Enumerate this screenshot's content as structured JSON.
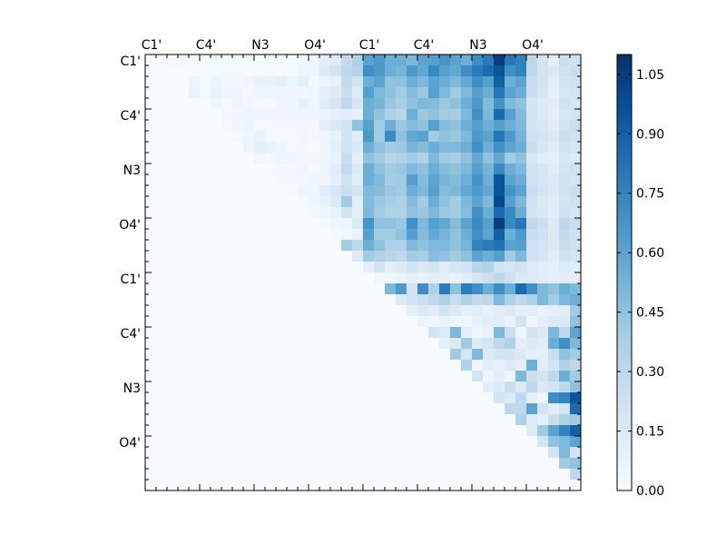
{
  "chart_data": {
    "type": "heatmap",
    "title": "",
    "xlabel": "",
    "ylabel": "",
    "grid": false,
    "colormap": "Blues",
    "colors": {
      "low": "#f7fbff",
      "high": "#08306b"
    },
    "n_rows": 40,
    "n_cols": 40,
    "x_tick_labels": [
      "C1'",
      "C4'",
      "N3",
      "O4'",
      "C1'",
      "C4'",
      "N3",
      "O4'"
    ],
    "x_tick_positions": [
      0,
      5,
      10,
      15,
      20,
      25,
      30,
      35
    ],
    "y_tick_labels": [
      "C1'",
      "C4'",
      "N3",
      "O4'",
      "C1'",
      "C4'",
      "N3",
      "O4'"
    ],
    "y_tick_positions": [
      0,
      5,
      10,
      15,
      20,
      25,
      30,
      35
    ],
    "colorbar": {
      "min": 0.0,
      "max": 1.1,
      "ticks": [
        0.0,
        0.15,
        0.3,
        0.45,
        0.6,
        0.75,
        0.9,
        1.05
      ],
      "tick_labels": [
        "0.00",
        "0.15",
        "0.30",
        "0.45",
        "0.60",
        "0.75",
        "0.90",
        "1.05"
      ]
    },
    "value_rows": [
      "0,0,0.03,0.03,0.01,0.01,0.02,0.02,0.01,0.01,0.01,0.01,0.01,0.01,0.03,0.04,0.12,0.14,0.28,0.35,0.60,0.65,0.55,0.55,0.50,0.60,0.62,0.68,0.60,0.55,0.70,0.78,1.05,0.80,0.75,0.30,0.20,0.10,0.25,0.22",
      "0,0,0,0,0.01,0.01,0.02,0.02,0.02,0.01,0.01,0.02,0.02,0.02,0.05,0.06,0.14,0.20,0.30,0.33,0.70,0.65,0.55,0.52,0.65,0.58,0.72,0.62,0.58,0.70,0.78,0.85,0.95,0.70,0.75,0.30,0.20,0.15,0.22,0.25",
      "0,0,0,0,0.05,0.01,0.06,0.03,0.03,0.05,0.08,0.08,0.10,0.06,0.10,0.02,0.06,0.08,0.28,0.20,0.55,0.60,0.45,0.45,0.55,0.50,0.60,0.55,0.50,0.58,0.70,0.62,0.90,0.55,0.60,0.25,0.20,0.12,0.20,0.22",
      "0,0,0,0,0.08,0.02,0.08,0.05,0.05,0.03,0.04,0.06,0.05,0.05,0.04,0.05,0.10,0.15,0.25,0.15,0.62,0.50,0.45,0.40,0.48,0.42,0.62,0.50,0.40,0.50,0.62,0.55,0.80,0.60,0.55,0.25,0.18,0.10,0.18,0.20",
      "0,0,0,0,0,0,0.04,0.02,0.06,0.04,0.02,0.03,0.05,0.04,0.08,0.05,0.12,0.18,0.30,0.18,0.55,0.52,0.42,0.38,0.45,0.50,0.48,0.42,0.45,0.55,0.65,0.48,0.68,0.50,0.45,0.20,0.15,0.12,0.22,0.18",
      "0,0,0,0,0,0,0,0.03,0.04,0.05,0.05,0.05,0.05,0.05,0.04,0.05,0.06,0.10,0.12,0.10,0.55,0.45,0.35,0.32,0.55,0.42,0.45,0.40,0.38,0.50,0.70,0.50,0.85,0.62,0.48,0.20,0.15,0.10,0.18,0.20",
      "0,0,0,0,0,0,0,0.02,0.04,0.06,0.02,0.03,0.03,0.03,0.03,0.03,0.10,0.15,0.20,0.45,0.62,0.40,0.55,0.42,0.48,0.45,0.62,0.48,0.45,0.55,0.62,0.55,0.62,0.55,0.50,0.20,0.18,0.12,0.20,0.25",
      "0,0,0,0,0,0,0,0,0.03,0.05,0.08,0.02,0.02,0.02,0.04,0.03,0.05,0.08,0.20,0.12,0.65,0.40,0.72,0.45,0.58,0.60,0.40,0.45,0.42,0.50,0.65,0.60,0.80,0.65,0.52,0.22,0.20,0.15,0.25,0.22",
      "0,0,0,0,0,0,0,0,0,0.06,0.10,0.08,0.05,0.02,0.03,0.02,0.05,0.10,0.20,0.15,0.55,0.45,0.40,0.42,0.52,0.48,0.55,0.50,0.50,0.55,0.70,0.55,0.70,0.60,0.55,0.25,0.18,0.12,0.22,0.20",
      "0,0,0,0,0,0,0,0,0,0,0.05,0.03,0.05,0.04,0.03,0.03,0.05,0.08,0.25,0.10,0.45,0.40,0.32,0.35,0.40,0.35,0.50,0.40,0.38,0.45,0.58,0.45,0.58,0.40,0.45,0.18,0.12,0.10,0.18,0.15",
      "0,0,0,0,0,0,0,0,0,0,0,0.02,0.03,0.03,0.04,0.02,0.06,0.12,0.28,0.15,0.55,0.45,0.40,0.42,0.50,0.45,0.55,0.48,0.45,0.50,0.62,0.52,0.72,0.55,0.50,0.22,0.18,0.12,0.20,0.22",
      "0,0,0,0,0,0,0,0,0,0,0,0,0.03,0.03,0.03,0.04,0.05,0.10,0.22,0.12,0.55,0.50,0.38,0.40,0.62,0.48,0.60,0.52,0.48,0.55,0.68,0.55,0.95,0.60,0.55,0.22,0.18,0.15,0.22,0.20",
      "0,0,0,0,0,0,0,0,0,0,0,0,0,0.02,0.05,0.05,0.12,0.18,0.25,0.20,0.50,0.48,0.42,0.40,0.55,0.50,0.62,0.48,0.50,0.58,0.65,0.58,0.95,0.68,0.60,0.25,0.20,0.15,0.22,0.25",
      "0,0,0,0,0,0,0,0,0,0,0,0,0,0,0.02,0.06,0.08,0.15,0.40,0.12,0.48,0.42,0.38,0.35,0.48,0.40,0.55,0.45,0.40,0.50,0.60,0.50,1.00,0.62,0.50,0.22,0.15,0.12,0.20,0.22",
      "0,0,0,0,0,0,0,0,0,0,0,0,0,0,0,0.03,0.05,0.08,0.20,0.10,0.50,0.40,0.35,0.35,0.45,0.42,0.50,0.42,0.40,0.48,0.70,0.55,0.85,0.72,0.55,0.20,0.18,0.12,0.22,0.20",
      "0,0,0,0,0,0,0,0,0,0,0,0,0,0,0,0,0.02,0.04,0.05,0.15,0.68,0.45,0.45,0.42,0.70,0.50,0.62,0.58,0.48,0.60,0.72,0.62,1.05,0.72,0.80,0.30,0.25,0.15,0.30,0.25",
      "0,0,0,0,0,0,0,0,0,0,0,0,0,0,0,0,0,0.02,0.04,0.08,0.62,0.40,0.40,0.45,0.62,0.48,0.58,0.52,0.45,0.55,0.70,0.60,0.90,0.55,0.65,0.25,0.22,0.15,0.28,0.22",
      "0,0,0,0,0,0,0,0,0,0,0,0,0,0,0,0,0,0,0.40,0.30,0.55,0.45,0.35,0.35,0.50,0.45,0.50,0.50,0.45,0.52,0.75,0.78,0.82,0.60,0.62,0.22,0.20,0.15,0.25,0.22",
      "0,0,0,0,0,0,0,0,0,0,0,0,0,0,0,0,0,0,0,0.15,0.40,0.35,0.32,0.30,0.40,0.38,0.48,0.45,0.40,0.45,0.60,0.55,0.62,0.40,0.50,0.22,0.18,0.12,0.22,0.20",
      "0,0,0,0,0,0,0,0,0,0,0,0,0,0,0,0,0,0,0,0,0.10,0.20,0.10,0.15,0.20,0.15,0.20,0.12,0.18,0.20,0.32,0.35,0.20,0.18,0.22,0.15,0.12,0.10,0.15,0.12",
      "0,0,0,0,0,0,0,0,0,0,0,0,0,0,0,0,0,0,0,0,0,0.05,0.05,0.08,0.10,0.08,0.12,0.10,0.08,0.12,0.20,0.25,0.30,0.22,0.15,0.15,0.12,0.10,0.12,0.10",
      "0,0,0,0,0,0,0,0,0,0,0,0,0,0,0,0,0,0,0,0,0,0,0.50,0.65,0.20,0.70,0.35,0.78,0.45,0.78,0.70,0.55,0.70,0.55,0.85,0.70,0.50,0.45,0.55,0.50",
      "0,0,0,0,0,0,0,0,0,0,0,0,0,0,0,0,0,0,0,0,0,0,0,0.15,0.20,0.25,0.30,0.35,0.25,0.35,0.28,0.30,0.50,0.35,0.30,0.35,0.50,0.40,0.50,0.55",
      "0,0,0,0,0,0,0,0,0,0,0,0,0,0,0,0,0,0,0,0,0,0,0,0,0.10,0.15,0.12,0.20,0.15,0.10,0.12,0.08,0.12,0.15,0.10,0.10,0.08,0.10,0.12,0.40",
      "0,0,0,0,0,0,0,0,0,0,0,0,0,0,0,0,0,0,0,0,0,0,0,0,0,0.05,0.05,0.08,0.05,0.05,0.08,0.10,0.12,0.08,0.20,0.05,0.10,0.15,0.15,0.45",
      "0,0,0,0,0,0,0,0,0,0,0,0,0,0,0,0,0,0,0,0,0,0,0,0,0,0,0.20,0.15,0.50,0.10,0.05,0.08,0.50,0.25,0.05,0.20,0.15,0.50,0.30,0.60",
      "0,0,0,0,0,0,0,0,0,0,0,0,0,0,0,0,0,0,0,0,0,0,0,0,0,0,0,0.10,0.15,0.40,0.15,0.20,0.30,0.35,0.10,0.15,0.12,0.55,0.70,0.50",
      "0,0,0,0,0,0,0,0,0,0,0,0,0,0,0,0,0,0,0,0,0,0,0,0,0,0,0,0,0.40,0.20,0.50,0.15,0.20,0.20,0.15,0.10,0.10,0.25,0.45,0.40",
      "0,0,0,0,0,0,0,0,0,0,0,0,0,0,0,0,0,0,0,0,0,0,0,0,0,0,0,0,0,0.35,0.05,0.10,0.08,0.15,0.10,0.55,0.12,0.20,0.35,0.30",
      "0,0,0,0,0,0,0,0,0,0,0,0,0,0,0,0,0,0,0,0,0,0,0,0,0,0,0,0,0,0,0.20,0.05,0.10,0.05,0.50,0.25,0.20,0.30,0.55,0.40",
      "0,0,0,0,0,0,0,0,0,0,0,0,0,0,0,0,0,0,0,0,0,0,0,0,0,0,0,0,0,0,0,0.10,0.15,0.25,0.15,0.30,0.15,0.20,0.30,0.45",
      "0,0,0,0,0,0,0,0,0,0,0,0,0,0,0,0,0,0,0,0,0,0,0,0,0,0,0,0,0,0,0,0,0.20,0.15,0.30,0.10,0.05,0.70,0.75,0.95",
      "0,0,0,0,0,0,0,0,0,0,0,0,0,0,0,0,0,0,0,0,0,0,0,0,0,0,0,0,0,0,0,0,0,0.30,0.30,0.60,0.20,0.12,0.20,0.85",
      "0,0,0,0,0,0,0,0,0,0,0,0,0,0,0,0,0,0,0,0,0,0,0,0,0,0,0,0,0,0,0,0,0,0,0.35,0.15,0.10,0.25,0.35,0.40",
      "0,0,0,0,0,0,0,0,0,0,0,0,0,0,0,0,0,0,0,0,0,0,0,0,0,0,0,0,0,0,0,0,0,0,0,0.15,0.40,0.60,0.75,0.90",
      "0,0,0,0,0,0,0,0,0,0,0,0,0,0,0,0,0,0,0,0,0,0,0,0,0,0,0,0,0,0,0,0,0,0,0,0,0.20,0.45,0.50,0.60",
      "0,0,0,0,0,0,0,0,0,0,0,0,0,0,0,0,0,0,0,0,0,0,0,0,0,0,0,0,0,0,0,0,0,0,0,0,0,0.20,0.50,0.20",
      "0,0,0,0,0,0,0,0,0,0,0,0,0,0,0,0,0,0,0,0,0,0,0,0,0,0,0,0,0,0,0,0,0,0,0,0,0,0,0.40,0.45",
      "0,0,0,0,0,0,0,0,0,0,0,0,0,0,0,0,0,0,0,0,0,0,0,0,0,0,0,0,0,0,0,0,0,0,0,0,0,0,0,0.30",
      "0,0,0,0,0,0,0,0,0,0,0,0,0,0,0,0,0,0,0,0,0,0,0,0,0,0,0,0,0,0,0,0,0,0,0,0,0,0,0,0"
    ]
  }
}
